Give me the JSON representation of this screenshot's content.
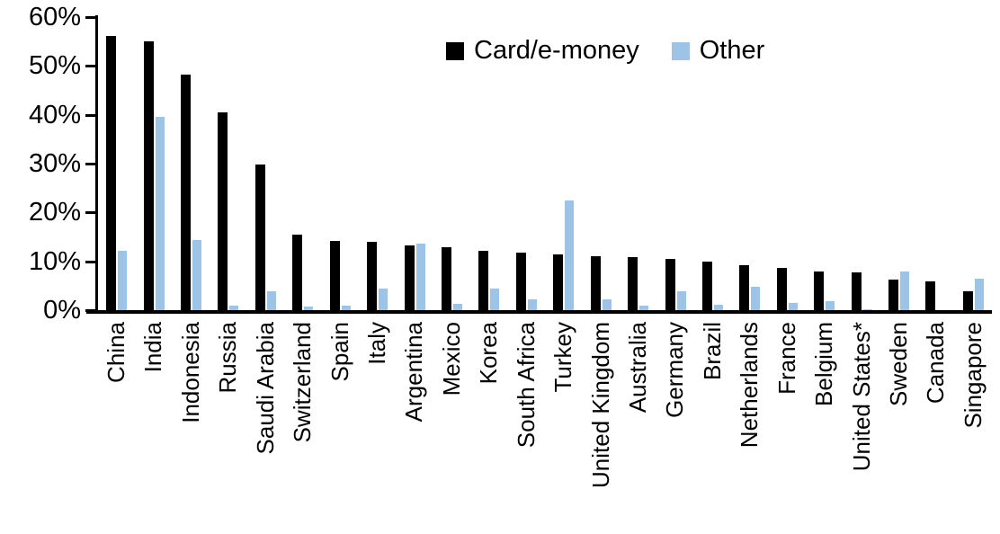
{
  "chart_data": {
    "type": "bar",
    "title": "",
    "xlabel": "",
    "ylabel": "",
    "ylim": [
      0,
      60
    ],
    "yticks": [
      0,
      10,
      20,
      30,
      40,
      50,
      60
    ],
    "ytick_labels": [
      "0%",
      "10%",
      "20%",
      "30%",
      "40%",
      "50%",
      "60%"
    ],
    "grid": false,
    "legend_position": "top-center",
    "value_unit": "percent",
    "categories": [
      "China",
      "India",
      "Indonesia",
      "Russia",
      "Saudi Arabia",
      "Switzerland",
      "Spain",
      "Italy",
      "Argentina",
      "Mexico",
      "Korea",
      "South Africa",
      "Turkey",
      "United Kingdom",
      "Australia",
      "Germany",
      "Brazil",
      "Netherlands",
      "France",
      "Belgium",
      "United States*",
      "Sweden",
      "Canada",
      "Singapore"
    ],
    "series": [
      {
        "name": "Card/e-money",
        "color": "#000000",
        "values": [
          56.2,
          55.0,
          48.2,
          40.5,
          29.8,
          15.5,
          14.1,
          14.0,
          13.3,
          12.8,
          12.1,
          11.7,
          11.5,
          11.0,
          10.8,
          10.5,
          9.9,
          9.2,
          8.6,
          8.0,
          7.8,
          6.3,
          5.9,
          3.8
        ]
      },
      {
        "name": "Other",
        "color": "#9DC3E6",
        "values": [
          12.2,
          39.6,
          14.4,
          0.9,
          3.8,
          0.8,
          0.9,
          4.5,
          13.7,
          1.2,
          4.5,
          2.2,
          22.4,
          2.3,
          0.9,
          3.9,
          1.1,
          4.8,
          1.5,
          1.9,
          0.2,
          7.9,
          0.0,
          6.5
        ]
      }
    ]
  }
}
